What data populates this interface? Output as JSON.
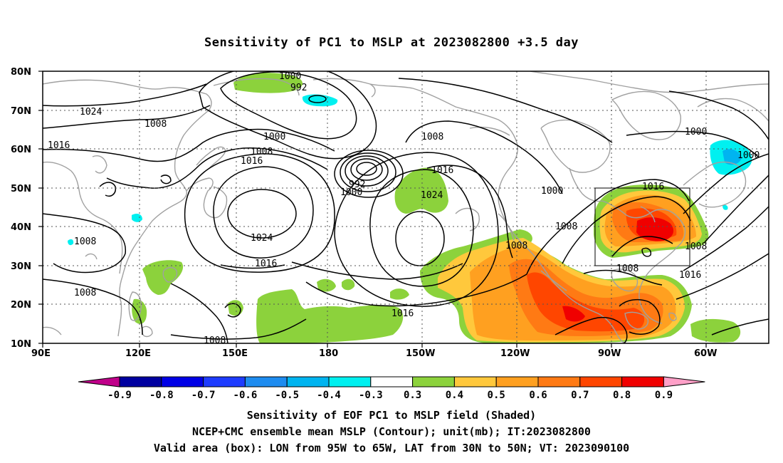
{
  "title": "Sensitivity of PC1 to MSLP at 2023082800 +3.5 day",
  "map": {
    "lat_labels": [
      "80N",
      "70N",
      "60N",
      "50N",
      "40N",
      "30N",
      "20N",
      "10N"
    ],
    "lon_labels": [
      "90E",
      "120E",
      "150E",
      "180",
      "150W",
      "120W",
      "90W",
      "60W"
    ],
    "isobar_labels": [
      {
        "text": "1000"
      },
      {
        "text": "992"
      },
      {
        "text": "1024"
      },
      {
        "text": "1008"
      },
      {
        "text": "1016"
      },
      {
        "text": "1000"
      },
      {
        "text": "1008"
      },
      {
        "text": "1016"
      },
      {
        "text": "1008"
      },
      {
        "text": "992"
      },
      {
        "text": "1000"
      },
      {
        "text": "1016"
      },
      {
        "text": "1024"
      },
      {
        "text": "1024"
      },
      {
        "text": "1016"
      },
      {
        "text": "1008"
      },
      {
        "text": "1008"
      },
      {
        "text": "1008"
      },
      {
        "text": "1016"
      },
      {
        "text": "1008"
      },
      {
        "text": "1000"
      },
      {
        "text": "1008"
      },
      {
        "text": "1016"
      },
      {
        "text": "1008"
      },
      {
        "text": "1008"
      },
      {
        "text": "1016"
      },
      {
        "text": "1000"
      },
      {
        "text": "1000"
      }
    ],
    "valid_box": {
      "lon_from": "95W",
      "lon_to": "65W",
      "lat_from": "30N",
      "lat_to": "50N"
    }
  },
  "colorbar": {
    "labels": [
      "-0.9",
      "-0.8",
      "-0.7",
      "-0.6",
      "-0.5",
      "-0.4",
      "-0.3",
      "0.3",
      "0.4",
      "0.5",
      "0.6",
      "0.7",
      "0.8",
      "0.9"
    ],
    "colors": {
      "low_tip": "#c0008a",
      "bins": [
        "#0000a0",
        "#0000e6",
        "#1e3cff",
        "#1e8cf0",
        "#00b4f0",
        "#00f0f0",
        "#ffffff",
        "#8cd23c",
        "#ffc83c",
        "#ffa020",
        "#ff7a14",
        "#ff4600",
        "#f00000"
      ],
      "high_tip": "#ffa0c8"
    }
  },
  "captions": {
    "line1": "Sensitivity of EOF PC1 to MSLP field (Shaded)",
    "line2": "NCEP+CMC ensemble mean MSLP (Contour); unit(mb); IT:2023082800",
    "line3": "Valid area (box): LON from 95W to 65W, LAT from 30N to 50N; VT: 2023090100"
  }
}
